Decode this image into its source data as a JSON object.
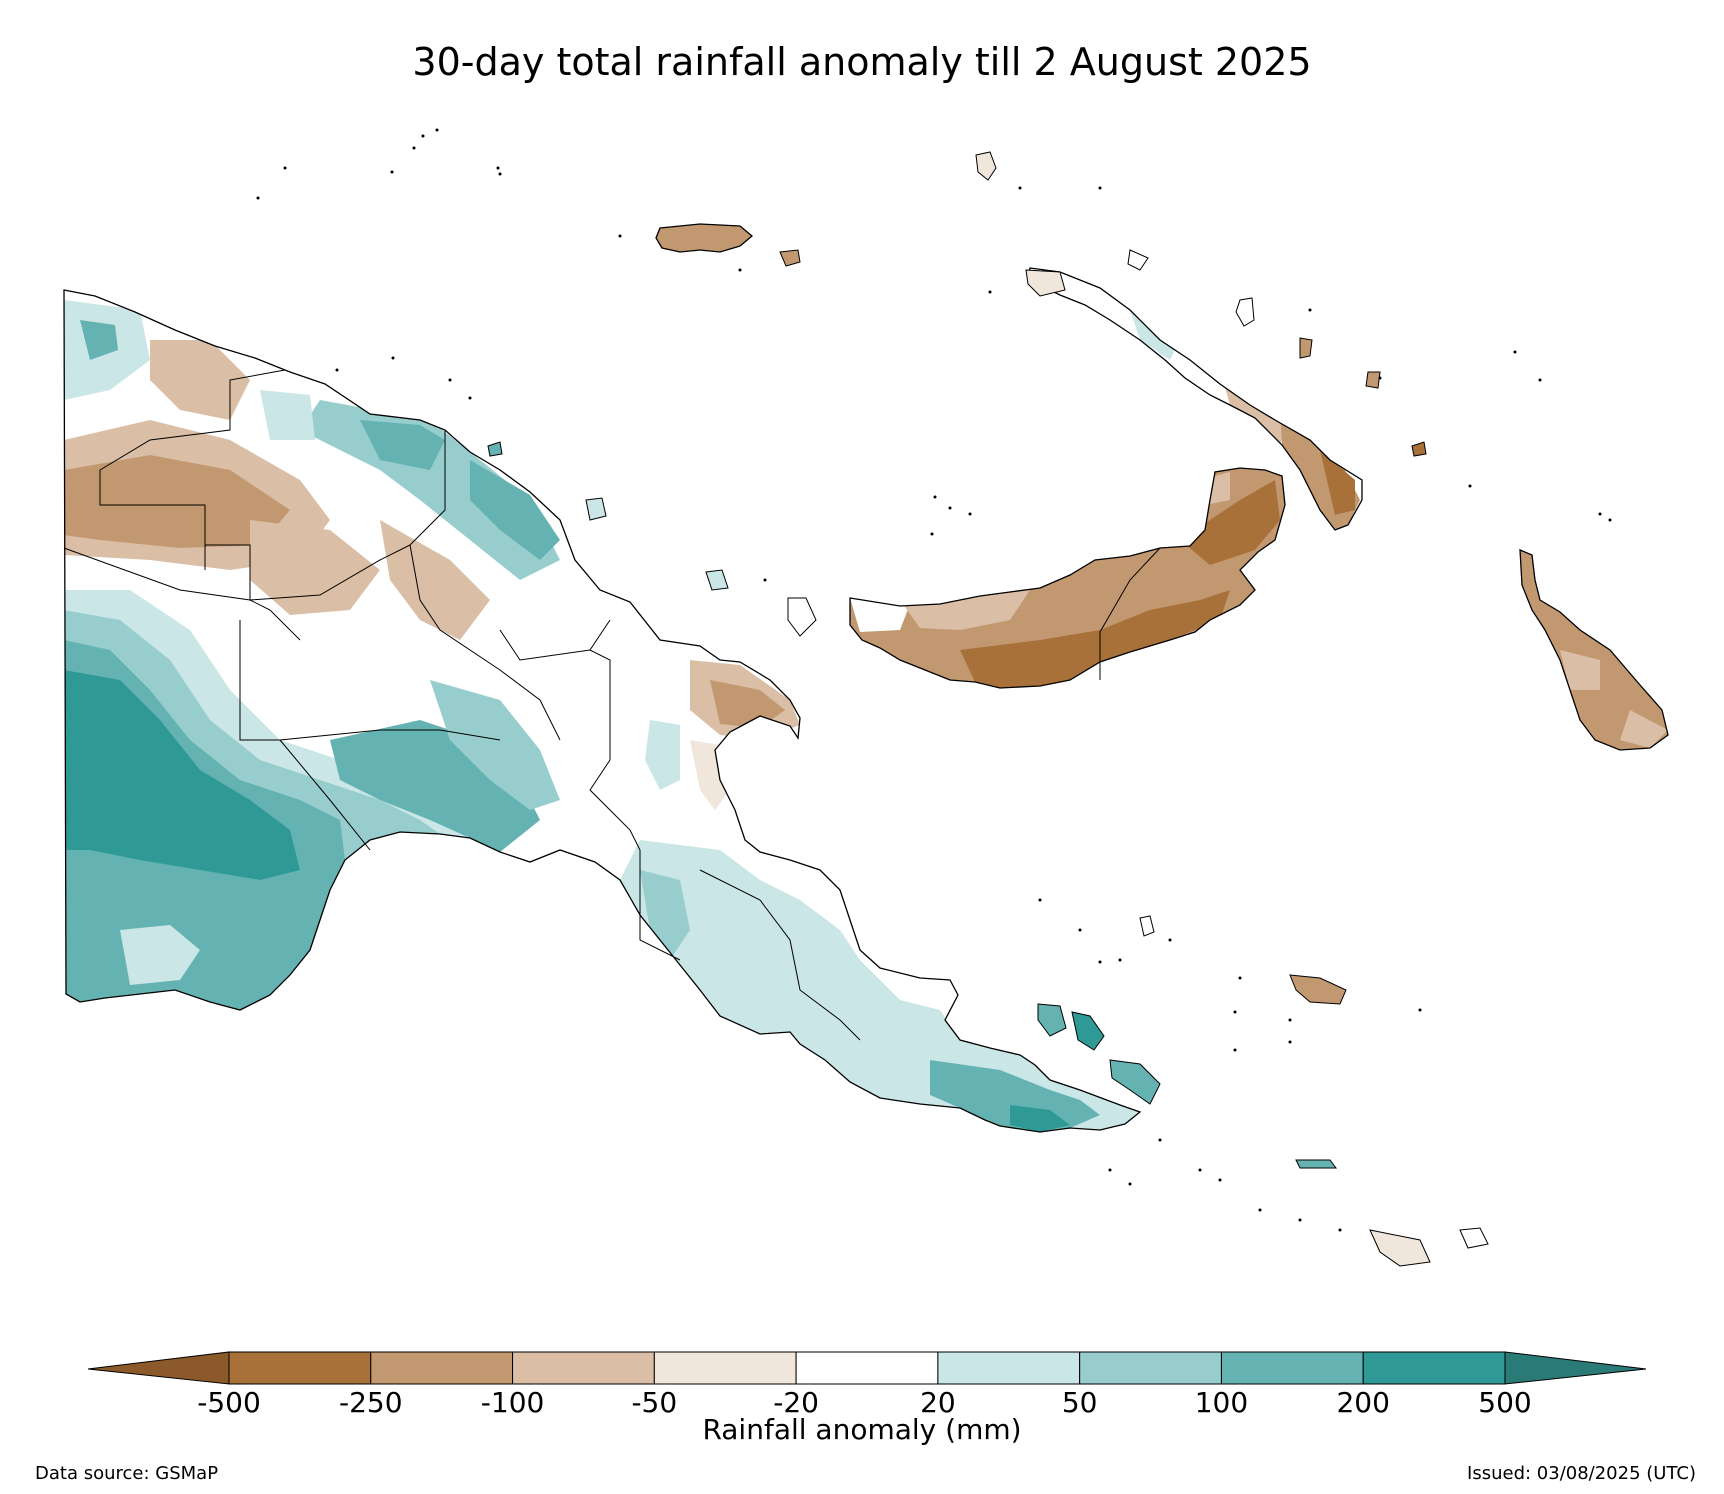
{
  "title": "30-day total rainfall anomaly till 2 August 2025",
  "colorbar": {
    "label": "Rainfall anomaly (mm)",
    "ticks": [
      "-500",
      "-250",
      "-100",
      "-50",
      "-20",
      "20",
      "50",
      "100",
      "200",
      "500"
    ],
    "colors": [
      "#a9713a",
      "#c29870",
      "#dabfa6",
      "#f1e6dc",
      "#ffffff",
      "#cbe6e6",
      "#97cecd",
      "#64b3b2",
      "#2f9996"
    ],
    "extend_low_color": "#8c5a2a",
    "extend_high_color": "#2a7a77"
  },
  "footer": {
    "source": "Data source: GSMaP",
    "issued": "Issued: 03/08/2025 (UTC)"
  }
}
